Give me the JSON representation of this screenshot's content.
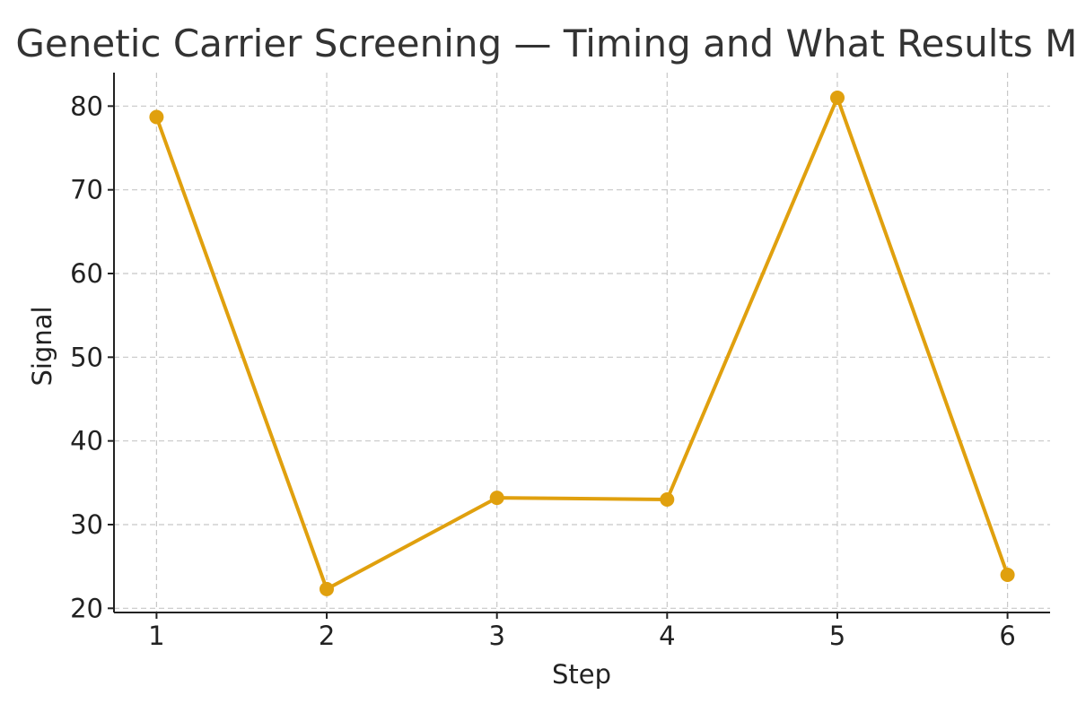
{
  "chart_data": {
    "type": "line",
    "title": "Genetic Carrier Screening — Timing and What Results Mean",
    "xlabel": "Step",
    "ylabel": "Signal",
    "x": [
      1,
      2,
      3,
      4,
      5,
      6
    ],
    "xlim": [
      0.75,
      6.25
    ],
    "ylim": [
      19.5,
      84
    ],
    "xticks": [
      1,
      2,
      3,
      4,
      5,
      6
    ],
    "yticks": [
      20,
      30,
      40,
      50,
      60,
      70,
      80
    ],
    "grid": true,
    "legend": "none",
    "series": [
      {
        "values": [
          78.7,
          22.3,
          33.2,
          33.0,
          81.0,
          24.0
        ],
        "color": "#E0A00E"
      }
    ]
  }
}
